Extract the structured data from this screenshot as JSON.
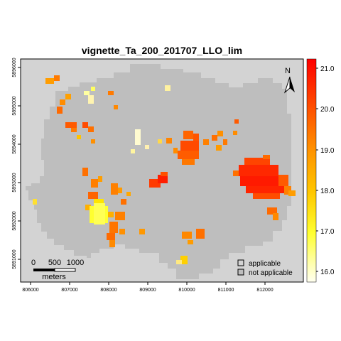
{
  "map": {
    "title": "vignette_Ta_200_201707_LLO_lim",
    "x_ticks": [
      "806000",
      "807000",
      "808000",
      "809000",
      "810000",
      "811000",
      "812000"
    ],
    "y_ticks": [
      "5891000",
      "5892000",
      "5893000",
      "5894000",
      "5895000",
      "5896000"
    ],
    "x_range": [
      805700,
      812900
    ],
    "y_range": [
      5890500,
      5896400
    ],
    "colorbar": {
      "ticks": [
        "16.0",
        "17.0",
        "18.0",
        "19.0",
        "20.0",
        "21.0"
      ],
      "range": [
        15.8,
        21.25
      ],
      "colors": [
        "#fffff0",
        "#ffff40",
        "#ffd200",
        "#ff9900",
        "#ff5500",
        "#ff0000"
      ]
    },
    "legend": {
      "items": [
        {
          "label": "applicable",
          "color": "#d3d3d3"
        },
        {
          "label": "not applicable",
          "color": "#bebebe"
        }
      ]
    },
    "north_arrow": {
      "label": "N"
    },
    "scale_bar": {
      "labels": [
        "0",
        "500",
        "1000"
      ],
      "unit": "meters"
    },
    "colors": {
      "background": "#d3d3d3",
      "region": "#bebebe"
    }
  }
}
